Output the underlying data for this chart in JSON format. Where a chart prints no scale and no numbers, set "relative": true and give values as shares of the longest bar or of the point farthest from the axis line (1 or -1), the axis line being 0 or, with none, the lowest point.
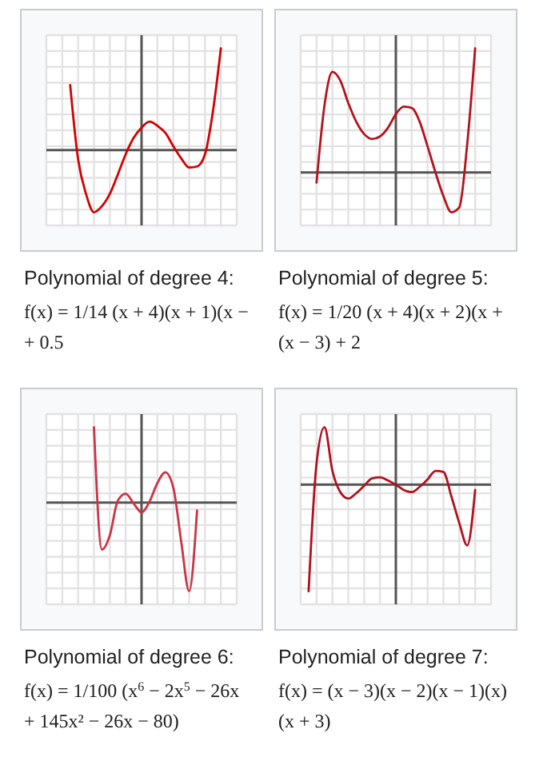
{
  "chart_data": [
    {
      "type": "line",
      "title": "Polynomial of degree 4:",
      "subtitle": "f(x) = 1/14 (x + 4)(x + 1)(x −\n+ 0.5",
      "relative": true,
      "grid": true,
      "color": "#d40000",
      "categories": [
        null,
        null,
        null,
        null,
        null,
        null,
        null,
        null,
        null,
        null,
        null,
        null,
        null,
        null,
        null,
        null,
        null,
        null,
        null,
        null,
        null,
        null,
        null,
        null,
        null
      ],
      "values": [
        null,
        null,
        null,
        0.64,
        -0.09,
        -0.43,
        -0.61,
        -0.55,
        -0.43,
        -0.24,
        -0.04,
        0.12,
        0.22,
        0.28,
        0.24,
        0.17,
        0.04,
        -0.08,
        -0.17,
        -0.16,
        -0.04,
        0.38,
        1,
        null,
        null
      ]
    },
    {
      "type": "line",
      "title": "Polynomial of degree 5:",
      "subtitle": "f(x) = 1/20 (x + 4)(x + 2)(x +\n(x − 3) + 2",
      "relative": true,
      "grid": true,
      "color": "#b5121b",
      "categories": [
        null,
        null,
        null,
        null,
        null,
        null,
        null,
        null,
        null,
        null,
        null,
        null,
        null,
        null,
        null,
        null,
        null,
        null,
        null,
        null,
        null,
        null,
        null,
        null,
        null
      ],
      "values": [
        null,
        null,
        -0.08,
        0.54,
        0.81,
        0.74,
        0.56,
        0.41,
        0.31,
        0.27,
        0.29,
        0.36,
        0.47,
        0.53,
        0.52,
        0.41,
        0.21,
        0,
        -0.19,
        -0.32,
        -0.28,
        0.23,
        1,
        null,
        null
      ]
    },
    {
      "type": "line",
      "title": "Polynomial of degree 6:",
      "subtitle": "f(x) = 1/100 (x$^{6}$ − 2x$^{5}$ − 26x\n+ 145x² − 26x − 80)",
      "relative": true,
      "grid": true,
      "color": "#cc3344",
      "categories": [
        null,
        null,
        null,
        null,
        null,
        null,
        null,
        null,
        null,
        null,
        null,
        null,
        null,
        null,
        null,
        null,
        null,
        null,
        null,
        null,
        null,
        null,
        null,
        null,
        null
      ],
      "values": [
        null,
        null,
        null,
        null,
        null,
        null,
        0.85,
        -0.53,
        -0.37,
        0.02,
        0.1,
        -0.01,
        -0.11,
        0.01,
        0.22,
        0.34,
        0.17,
        -0.44,
        -1,
        -0.09,
        null,
        null,
        null,
        null,
        null
      ]
    },
    {
      "type": "line",
      "title": "Polynomial of degree 7:",
      "subtitle": "f(x) = (x − 3)(x − 2)(x − 1)(x)\n(x + 3)",
      "relative": true,
      "grid": true,
      "color": "#b30f1c",
      "categories": [
        null,
        null,
        null,
        null,
        null,
        null,
        null,
        null,
        null,
        null,
        null,
        null,
        null,
        null,
        null,
        null,
        null,
        null,
        null,
        null,
        null,
        null,
        null,
        null,
        null
      ],
      "values": [
        null,
        -1,
        0.2,
        0.54,
        0.13,
        -0.07,
        -0.13,
        -0.08,
        -0.01,
        0.06,
        0.07,
        0.04,
        0,
        -0.05,
        -0.07,
        -0.02,
        0.05,
        0.13,
        0.12,
        -0.11,
        -0.36,
        -0.57,
        -0.05,
        null,
        null
      ]
    }
  ]
}
